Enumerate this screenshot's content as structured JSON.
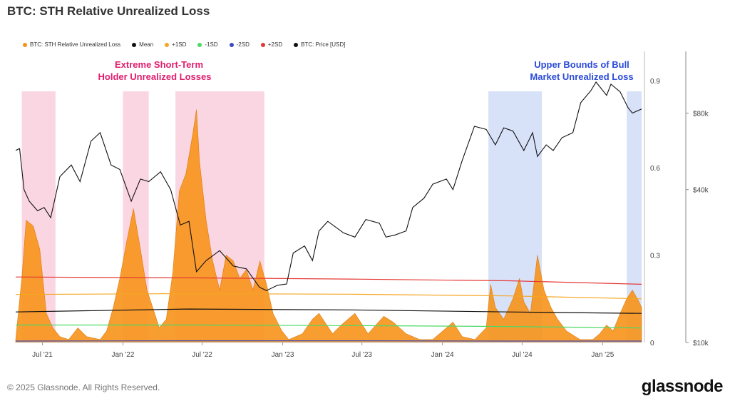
{
  "title": "BTC: STH Relative Unrealized Loss",
  "copyright": "© 2025 Glassnode. All Rights Reserved.",
  "brand": "glassnode",
  "colors": {
    "loss": "#f7931a",
    "mean": "#111111",
    "plus1sd": "#f5a623",
    "minus1sd": "#4cd964",
    "minus2sd": "#3b4cc0",
    "plus2sd": "#e53935",
    "price": "#111111",
    "pink_band": "#f8c8da",
    "blue_band": "#c9d8f5",
    "annotation_pink": "#e01e6e",
    "annotation_blue": "#2b4bd8"
  },
  "legend": [
    {
      "label": "BTC: STH Relative Unrealized Loss",
      "color": "#f7931a"
    },
    {
      "label": "Mean",
      "color": "#111111"
    },
    {
      "label": "+1SD",
      "color": "#f5a623"
    },
    {
      "label": "-1SD",
      "color": "#4cd964"
    },
    {
      "label": "-2SD",
      "color": "#3b4cc0"
    },
    {
      "label": "+2SD",
      "color": "#e53935"
    },
    {
      "label": "BTC: Price [USD]",
      "color": "#111111"
    }
  ],
  "annotations": {
    "pink_line1": "Extreme Short-Term",
    "pink_line2": "Holder Unrealized Losses",
    "blue_line1": "Upper Bounds of Bull",
    "blue_line2": "Market Unrealized Loss"
  },
  "chart_data": {
    "type": "area",
    "x_ticks": [
      "Jul '21",
      "Jan '22",
      "Jul '22",
      "Jan '23",
      "Jul '23",
      "Jan '24",
      "Jul '24",
      "Jan '25"
    ],
    "y_left_ticks": [
      "0",
      "0.3",
      "0.6",
      "0.9"
    ],
    "y_right_ticks": [
      "$10k",
      "$40k",
      "$80k"
    ],
    "ylim_left": [
      0,
      1.0
    ],
    "x_range": [
      "2021-05-01",
      "2025-03-31"
    ],
    "shaded_periods": [
      {
        "start": "2021-05-15",
        "end": "2021-07-31",
        "kind": "pink"
      },
      {
        "start": "2022-01-01",
        "end": "2022-03-01",
        "kind": "pink"
      },
      {
        "start": "2022-05-01",
        "end": "2022-11-20",
        "kind": "pink"
      },
      {
        "start": "2024-04-15",
        "end": "2024-08-15",
        "kind": "blue"
      },
      {
        "start": "2025-02-25",
        "end": "2025-03-31",
        "kind": "blue"
      }
    ],
    "series": [
      {
        "name": "BTC: STH Relative Unrealized Loss",
        "x": [
          "2021-05-01",
          "2021-05-15",
          "2021-05-25",
          "2021-06-10",
          "2021-06-25",
          "2021-07-10",
          "2021-07-25",
          "2021-08-10",
          "2021-08-30",
          "2021-09-20",
          "2021-10-10",
          "2021-11-10",
          "2021-11-25",
          "2021-12-10",
          "2021-12-25",
          "2022-01-10",
          "2022-01-25",
          "2022-02-10",
          "2022-02-25",
          "2022-03-10",
          "2022-03-25",
          "2022-04-10",
          "2022-04-25",
          "2022-05-10",
          "2022-05-25",
          "2022-06-10",
          "2022-06-18",
          "2022-06-25",
          "2022-07-10",
          "2022-07-25",
          "2022-08-10",
          "2022-08-25",
          "2022-09-10",
          "2022-09-25",
          "2022-10-10",
          "2022-10-25",
          "2022-11-10",
          "2022-11-25",
          "2022-12-10",
          "2022-12-30",
          "2023-01-15",
          "2023-02-15",
          "2023-03-10",
          "2023-03-25",
          "2023-04-25",
          "2023-05-15",
          "2023-06-15",
          "2023-07-15",
          "2023-08-20",
          "2023-09-10",
          "2023-10-10",
          "2023-11-10",
          "2023-12-10",
          "2024-01-10",
          "2024-01-25",
          "2024-02-15",
          "2024-03-15",
          "2024-04-10",
          "2024-04-20",
          "2024-05-01",
          "2024-05-20",
          "2024-06-10",
          "2024-06-25",
          "2024-07-05",
          "2024-07-20",
          "2024-08-05",
          "2024-08-20",
          "2024-09-05",
          "2024-09-20",
          "2024-10-10",
          "2024-11-10",
          "2024-12-10",
          "2024-12-25",
          "2025-01-10",
          "2025-01-25",
          "2025-02-10",
          "2025-02-25",
          "2025-03-10",
          "2025-03-25",
          "2025-03-31"
        ],
        "values": [
          0.01,
          0.22,
          0.42,
          0.4,
          0.32,
          0.1,
          0.05,
          0.02,
          0.01,
          0.05,
          0.02,
          0.01,
          0.04,
          0.12,
          0.22,
          0.35,
          0.46,
          0.32,
          0.18,
          0.12,
          0.05,
          0.08,
          0.24,
          0.52,
          0.58,
          0.72,
          0.8,
          0.62,
          0.42,
          0.28,
          0.18,
          0.3,
          0.28,
          0.22,
          0.25,
          0.18,
          0.28,
          0.2,
          0.1,
          0.04,
          0.01,
          0.03,
          0.08,
          0.1,
          0.03,
          0.06,
          0.1,
          0.03,
          0.09,
          0.07,
          0.03,
          0.01,
          0.01,
          0.05,
          0.07,
          0.02,
          0.01,
          0.05,
          0.2,
          0.12,
          0.08,
          0.15,
          0.22,
          0.14,
          0.1,
          0.3,
          0.18,
          0.12,
          0.08,
          0.04,
          0.01,
          0.01,
          0.03,
          0.06,
          0.04,
          0.1,
          0.15,
          0.18,
          0.14,
          0.12
        ]
      },
      {
        "name": "Mean",
        "x": [
          "2021-05-01",
          "2022-06-01",
          "2023-06-01",
          "2024-06-01",
          "2025-03-31"
        ],
        "values": [
          0.105,
          0.115,
          0.112,
          0.105,
          0.1
        ]
      },
      {
        "name": "+1SD",
        "x": [
          "2021-05-01",
          "2022-06-01",
          "2023-06-01",
          "2024-06-01",
          "2025-03-31"
        ],
        "values": [
          0.165,
          0.168,
          0.166,
          0.16,
          0.15
        ]
      },
      {
        "name": "-1SD",
        "x": [
          "2021-05-01",
          "2022-06-01",
          "2023-06-01",
          "2024-06-01",
          "2025-03-31"
        ],
        "values": [
          0.06,
          0.06,
          0.058,
          0.055,
          0.05
        ]
      },
      {
        "name": "-2SD",
        "x": [
          "2021-05-01",
          "2022-06-01",
          "2023-06-01",
          "2024-06-01",
          "2025-03-31"
        ],
        "values": [
          0.005,
          0.006,
          0.006,
          0.005,
          0.005
        ]
      },
      {
        "name": "+2SD",
        "x": [
          "2021-05-01",
          "2022-06-01",
          "2023-06-01",
          "2024-06-01",
          "2025-03-31"
        ],
        "values": [
          0.225,
          0.222,
          0.218,
          0.212,
          0.2
        ]
      },
      {
        "name": "BTC: Price [USD]",
        "x": [
          "2021-05-01",
          "2021-05-10",
          "2021-05-20",
          "2021-06-01",
          "2021-06-20",
          "2021-07-05",
          "2021-07-20",
          "2021-08-10",
          "2021-09-05",
          "2021-09-25",
          "2021-10-20",
          "2021-11-10",
          "2021-12-05",
          "2021-12-25",
          "2022-01-20",
          "2022-02-10",
          "2022-03-01",
          "2022-03-28",
          "2022-04-20",
          "2022-05-12",
          "2022-06-01",
          "2022-06-18",
          "2022-07-10",
          "2022-08-10",
          "2022-09-10",
          "2022-10-10",
          "2022-11-09",
          "2022-11-25",
          "2022-12-20",
          "2023-01-10",
          "2023-01-25",
          "2023-02-20",
          "2023-03-10",
          "2023-03-25",
          "2023-04-14",
          "2023-05-20",
          "2023-06-15",
          "2023-07-10",
          "2023-08-10",
          "2023-08-25",
          "2023-09-15",
          "2023-10-10",
          "2023-10-25",
          "2023-11-20",
          "2023-12-10",
          "2024-01-10",
          "2024-01-25",
          "2024-02-15",
          "2024-03-14",
          "2024-04-10",
          "2024-05-01",
          "2024-05-20",
          "2024-06-10",
          "2024-07-05",
          "2024-07-25",
          "2024-08-05",
          "2024-08-25",
          "2024-09-10",
          "2024-09-30",
          "2024-10-25",
          "2024-11-12",
          "2024-12-05",
          "2024-12-17",
          "2025-01-10",
          "2025-01-20",
          "2025-02-10",
          "2025-02-28",
          "2025-03-10",
          "2025-03-31"
        ],
        "values": [
          57000,
          58000,
          40000,
          36000,
          33000,
          34000,
          31000,
          45000,
          50000,
          43000,
          62000,
          67000,
          50000,
          48000,
          36000,
          44000,
          43000,
          47000,
          40000,
          29000,
          30000,
          19000,
          21000,
          23000,
          20000,
          19500,
          16500,
          16000,
          16800,
          17000,
          22500,
          24000,
          21000,
          27500,
          30000,
          27000,
          26000,
          30500,
          29500,
          26000,
          26500,
          27500,
          34000,
          37000,
          42000,
          44000,
          40000,
          52000,
          71000,
          69000,
          60000,
          70000,
          68000,
          57000,
          67000,
          54000,
          60000,
          57000,
          64000,
          67000,
          88000,
          98000,
          106000,
          94000,
          104000,
          97000,
          84000,
          80000,
          83000
        ]
      }
    ]
  }
}
